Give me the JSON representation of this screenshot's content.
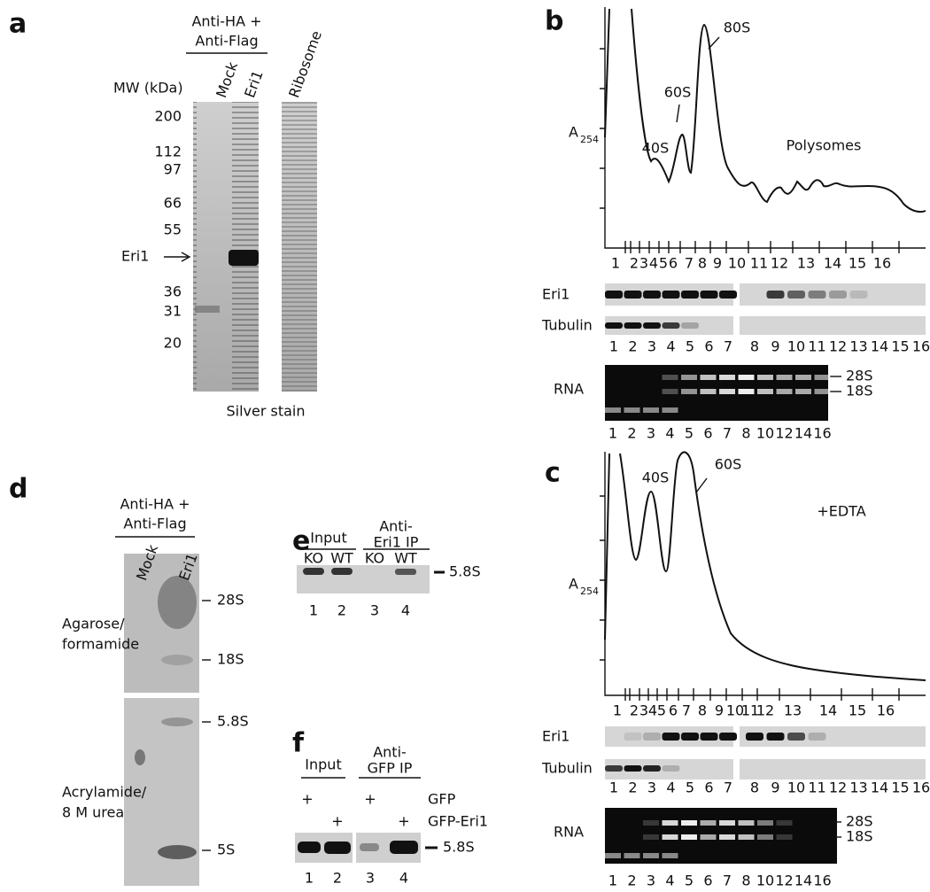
{
  "a": {
    "letter": "a",
    "antibody": [
      "Anti-HA +",
      "Anti-Flag"
    ],
    "lanes": [
      "Mock",
      "Eri1",
      "Ribosome"
    ],
    "mw_label": "MW (kDa)",
    "markers": [
      "200",
      "112",
      "97",
      "66",
      "55",
      "36",
      "31",
      "20"
    ],
    "arrow_label": "Eri1",
    "stain": "Silver stain"
  },
  "b": {
    "letter": "b",
    "y_label": "A",
    "y_label_sub": "254",
    "peaks": [
      "40S",
      "60S",
      "80S"
    ],
    "region": "Polysomes",
    "fractions": [
      "1",
      "2",
      "3",
      "4",
      "5",
      "6",
      "7",
      "8",
      "9",
      "10",
      "11",
      "12",
      "13",
      "14",
      "15",
      "16"
    ],
    "blots": [
      "Eri1",
      "Tubulin"
    ],
    "blot_lanes": [
      "1",
      "2",
      "3",
      "4",
      "5",
      "6",
      "7",
      "8",
      "9",
      "10",
      "11",
      "12",
      "13",
      "14",
      "15",
      "16"
    ],
    "rna_label": "RNA",
    "rna_bands": [
      "28S",
      "18S"
    ],
    "rna_lanes": [
      "1",
      "2",
      "3",
      "4",
      "5",
      "6",
      "7",
      "8",
      "10",
      "12",
      "14",
      "16"
    ]
  },
  "c": {
    "letter": "c",
    "y_label": "A",
    "y_label_sub": "254",
    "peaks": [
      "40S",
      "60S"
    ],
    "condition": "+EDTA",
    "fractions": [
      "1",
      "2",
      "3",
      "4",
      "5",
      "6",
      "7",
      "8",
      "9",
      "10",
      "11",
      "12",
      "13",
      "14",
      "15",
      "16"
    ],
    "blots": [
      "Eri1",
      "Tubulin"
    ],
    "blot_lanes": [
      "1",
      "2",
      "3",
      "4",
      "5",
      "6",
      "7",
      "8",
      "9",
      "10",
      "11",
      "12",
      "13",
      "14",
      "15",
      "16"
    ],
    "rna_label": "RNA",
    "rna_bands": [
      "28S",
      "18S"
    ],
    "rna_lanes": [
      "1",
      "2",
      "3",
      "4",
      "5",
      "6",
      "7",
      "8",
      "10",
      "12",
      "14",
      "16"
    ]
  },
  "d": {
    "letter": "d",
    "antibody": [
      "Anti-HA +",
      "Anti-Flag"
    ],
    "lanes": [
      "Mock",
      "Eri1"
    ],
    "gels": [
      [
        "Agarose/",
        "formamide"
      ],
      [
        "Acrylamide/",
        "8 M urea"
      ]
    ],
    "bands": [
      "28S",
      "18S",
      "5.8S",
      "5S"
    ]
  },
  "e": {
    "letter": "e",
    "group1": "Input",
    "group2": [
      "Anti-",
      "Eri1 IP"
    ],
    "genotypes": [
      "KO",
      "WT",
      "KO",
      "WT"
    ],
    "band": "5.8S",
    "lanes": [
      "1",
      "2",
      "3",
      "4"
    ]
  },
  "f": {
    "letter": "f",
    "group1": "Input",
    "group2": [
      "Anti-",
      "GFP IP"
    ],
    "constructs": [
      "GFP",
      "GFP-Eri1"
    ],
    "plus": [
      "+",
      "+",
      "+",
      "+"
    ],
    "band": "5.8S",
    "lanes": [
      "1",
      "2",
      "3",
      "4"
    ]
  }
}
